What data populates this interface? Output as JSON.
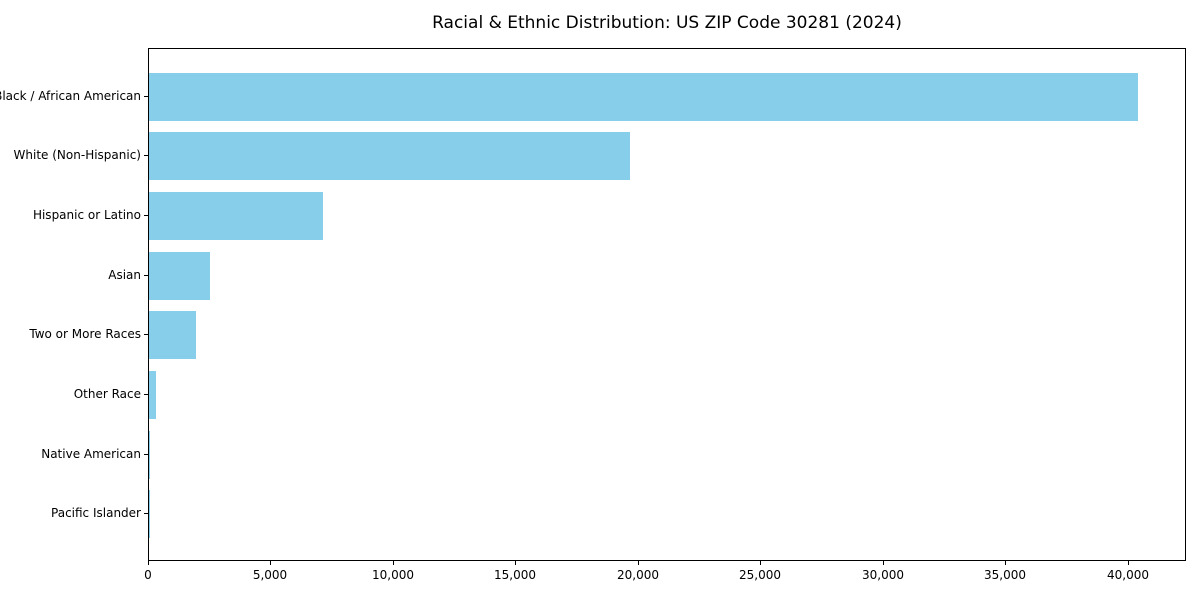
{
  "chart_data": {
    "type": "bar",
    "orientation": "horizontal",
    "title": "Racial & Ethnic Distribution: US ZIP Code 30281 (2024)",
    "categories": [
      "Black / African American",
      "White (Non-Hispanic)",
      "Hispanic or Latino",
      "Asian",
      "Two or More Races",
      "Other Race",
      "Native American",
      "Pacific Islander"
    ],
    "values": [
      40350,
      19650,
      7100,
      2500,
      1900,
      300,
      50,
      20
    ],
    "xlabel": "",
    "ylabel": "",
    "xlim": [
      0,
      42370
    ],
    "x_ticks": [
      0,
      5000,
      10000,
      15000,
      20000,
      25000,
      30000,
      35000,
      40000
    ],
    "x_tick_labels": [
      "0",
      "5,000",
      "10,000",
      "15,000",
      "20,000",
      "25,000",
      "30,000",
      "35,000",
      "40,000"
    ],
    "bar_color": "#87CEEB",
    "axis_color": "#000000",
    "grid": false,
    "legend": null
  }
}
